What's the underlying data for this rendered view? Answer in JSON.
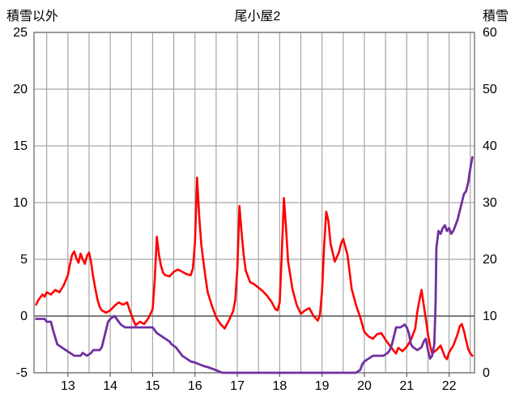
{
  "chart_data": {
    "type": "line",
    "title": "尾小屋2",
    "xlim": [
      12.2,
      22.6
    ],
    "x_ticks": [
      13,
      14,
      15,
      16,
      17,
      18,
      19,
      20,
      21,
      22
    ],
    "x_grid_step": 0.5,
    "grid": true,
    "legend": "none",
    "left_axis": {
      "label": "積雪以外",
      "lim": [
        -5,
        25
      ],
      "ticks": [
        -5,
        0,
        5,
        10,
        15,
        20,
        25
      ]
    },
    "right_axis": {
      "label": "積雪",
      "lim": [
        0,
        60
      ],
      "ticks": [
        0,
        10,
        20,
        30,
        40,
        50,
        60
      ]
    },
    "colors": {
      "grid": "#a6a6a6",
      "border": "#808080",
      "zero_line": "#595959",
      "tick_text": "#000000",
      "series_red": "#ff0000",
      "series_purple": "#7030a0"
    },
    "series": [
      {
        "name": "積雪以外",
        "axis": "left",
        "color": "#ff0000",
        "width": 2.6,
        "points": [
          [
            12.25,
            1.0
          ],
          [
            12.3,
            1.4
          ],
          [
            12.4,
            1.9
          ],
          [
            12.45,
            1.7
          ],
          [
            12.5,
            2.1
          ],
          [
            12.6,
            1.9
          ],
          [
            12.7,
            2.3
          ],
          [
            12.8,
            2.1
          ],
          [
            12.9,
            2.7
          ],
          [
            13.0,
            3.6
          ],
          [
            13.05,
            4.6
          ],
          [
            13.1,
            5.4
          ],
          [
            13.15,
            5.7
          ],
          [
            13.2,
            5.1
          ],
          [
            13.25,
            4.7
          ],
          [
            13.3,
            5.5
          ],
          [
            13.35,
            5.0
          ],
          [
            13.4,
            4.6
          ],
          [
            13.45,
            5.3
          ],
          [
            13.5,
            5.6
          ],
          [
            13.55,
            4.7
          ],
          [
            13.6,
            3.4
          ],
          [
            13.65,
            2.4
          ],
          [
            13.7,
            1.4
          ],
          [
            13.75,
            0.8
          ],
          [
            13.8,
            0.5
          ],
          [
            13.9,
            0.3
          ],
          [
            14.0,
            0.5
          ],
          [
            14.1,
            0.9
          ],
          [
            14.2,
            1.2
          ],
          [
            14.3,
            1.0
          ],
          [
            14.4,
            1.2
          ],
          [
            14.45,
            0.6
          ],
          [
            14.5,
            0.1
          ],
          [
            14.55,
            -0.4
          ],
          [
            14.6,
            -0.8
          ],
          [
            14.7,
            -0.5
          ],
          [
            14.8,
            -0.7
          ],
          [
            14.9,
            -0.2
          ],
          [
            15.0,
            0.6
          ],
          [
            15.05,
            3.2
          ],
          [
            15.1,
            7.0
          ],
          [
            15.15,
            5.4
          ],
          [
            15.2,
            4.4
          ],
          [
            15.25,
            3.8
          ],
          [
            15.3,
            3.6
          ],
          [
            15.4,
            3.5
          ],
          [
            15.5,
            3.9
          ],
          [
            15.6,
            4.1
          ],
          [
            15.7,
            3.9
          ],
          [
            15.8,
            3.7
          ],
          [
            15.9,
            3.6
          ],
          [
            15.95,
            4.2
          ],
          [
            16.0,
            6.5
          ],
          [
            16.05,
            12.2
          ],
          [
            16.1,
            8.8
          ],
          [
            16.15,
            6.3
          ],
          [
            16.2,
            4.8
          ],
          [
            16.25,
            3.4
          ],
          [
            16.3,
            2.1
          ],
          [
            16.4,
            0.9
          ],
          [
            16.5,
            -0.1
          ],
          [
            16.6,
            -0.7
          ],
          [
            16.7,
            -1.1
          ],
          [
            16.8,
            -0.4
          ],
          [
            16.9,
            0.4
          ],
          [
            16.95,
            1.4
          ],
          [
            17.0,
            4.2
          ],
          [
            17.05,
            9.7
          ],
          [
            17.1,
            7.4
          ],
          [
            17.15,
            5.4
          ],
          [
            17.2,
            4.0
          ],
          [
            17.3,
            3.0
          ],
          [
            17.4,
            2.8
          ],
          [
            17.5,
            2.5
          ],
          [
            17.6,
            2.2
          ],
          [
            17.7,
            1.8
          ],
          [
            17.8,
            1.3
          ],
          [
            17.9,
            0.6
          ],
          [
            17.95,
            0.5
          ],
          [
            18.0,
            1.2
          ],
          [
            18.05,
            5.5
          ],
          [
            18.1,
            10.4
          ],
          [
            18.15,
            7.8
          ],
          [
            18.2,
            4.8
          ],
          [
            18.3,
            2.4
          ],
          [
            18.4,
            1.0
          ],
          [
            18.5,
            0.2
          ],
          [
            18.6,
            0.5
          ],
          [
            18.7,
            0.7
          ],
          [
            18.8,
            0.0
          ],
          [
            18.9,
            -0.4
          ],
          [
            18.95,
            0.1
          ],
          [
            19.0,
            2.2
          ],
          [
            19.05,
            6.2
          ],
          [
            19.1,
            9.2
          ],
          [
            19.15,
            8.4
          ],
          [
            19.2,
            6.4
          ],
          [
            19.3,
            4.8
          ],
          [
            19.4,
            5.6
          ],
          [
            19.45,
            6.4
          ],
          [
            19.5,
            6.8
          ],
          [
            19.55,
            6.1
          ],
          [
            19.6,
            5.4
          ],
          [
            19.65,
            3.9
          ],
          [
            19.7,
            2.4
          ],
          [
            19.8,
            1.0
          ],
          [
            19.9,
            -0.1
          ],
          [
            20.0,
            -1.4
          ],
          [
            20.1,
            -1.8
          ],
          [
            20.2,
            -2.0
          ],
          [
            20.3,
            -1.6
          ],
          [
            20.4,
            -1.5
          ],
          [
            20.5,
            -2.1
          ],
          [
            20.6,
            -2.6
          ],
          [
            20.7,
            -3.1
          ],
          [
            20.75,
            -3.3
          ],
          [
            20.8,
            -2.8
          ],
          [
            20.9,
            -3.1
          ],
          [
            21.0,
            -2.7
          ],
          [
            21.1,
            -2.1
          ],
          [
            21.2,
            -1.1
          ],
          [
            21.25,
            0.4
          ],
          [
            21.3,
            1.4
          ],
          [
            21.35,
            2.3
          ],
          [
            21.4,
            1.0
          ],
          [
            21.45,
            -0.2
          ],
          [
            21.5,
            -1.6
          ],
          [
            21.55,
            -2.6
          ],
          [
            21.6,
            -3.3
          ],
          [
            21.7,
            -3.0
          ],
          [
            21.8,
            -2.6
          ],
          [
            21.85,
            -3.1
          ],
          [
            21.9,
            -3.6
          ],
          [
            21.95,
            -3.8
          ],
          [
            22.0,
            -3.2
          ],
          [
            22.1,
            -2.6
          ],
          [
            22.2,
            -1.6
          ],
          [
            22.25,
            -0.9
          ],
          [
            22.3,
            -0.7
          ],
          [
            22.35,
            -1.3
          ],
          [
            22.4,
            -2.1
          ],
          [
            22.45,
            -2.9
          ],
          [
            22.5,
            -3.3
          ],
          [
            22.55,
            -3.5
          ]
        ]
      },
      {
        "name": "積雪",
        "axis": "right",
        "color": "#7030a0",
        "width": 2.8,
        "points": [
          [
            12.25,
            9.5
          ],
          [
            12.45,
            9.5
          ],
          [
            12.5,
            9.0
          ],
          [
            12.6,
            9.0
          ],
          [
            12.65,
            7.5
          ],
          [
            12.75,
            5.0
          ],
          [
            12.85,
            4.5
          ],
          [
            12.95,
            4.0
          ],
          [
            13.05,
            3.5
          ],
          [
            13.15,
            3.0
          ],
          [
            13.3,
            3.0
          ],
          [
            13.35,
            3.5
          ],
          [
            13.45,
            3.0
          ],
          [
            13.55,
            3.5
          ],
          [
            13.6,
            4.0
          ],
          [
            13.75,
            4.0
          ],
          [
            13.8,
            4.5
          ],
          [
            13.85,
            6.0
          ],
          [
            13.95,
            9.0
          ],
          [
            14.0,
            9.5
          ],
          [
            14.1,
            10.0
          ],
          [
            14.15,
            9.5
          ],
          [
            14.25,
            8.5
          ],
          [
            14.35,
            8.0
          ],
          [
            14.6,
            8.0
          ],
          [
            14.75,
            8.0
          ],
          [
            15.0,
            8.0
          ],
          [
            15.05,
            7.5
          ],
          [
            15.1,
            7.0
          ],
          [
            15.2,
            6.5
          ],
          [
            15.3,
            6.0
          ],
          [
            15.4,
            5.5
          ],
          [
            15.45,
            5.0
          ],
          [
            15.55,
            4.5
          ],
          [
            15.6,
            4.0
          ],
          [
            15.7,
            3.0
          ],
          [
            15.8,
            2.5
          ],
          [
            15.9,
            2.0
          ],
          [
            16.0,
            1.8
          ],
          [
            16.1,
            1.5
          ],
          [
            16.2,
            1.2
          ],
          [
            16.3,
            1.0
          ],
          [
            16.45,
            0.6
          ],
          [
            16.55,
            0.3
          ],
          [
            16.65,
            0.0
          ],
          [
            17.0,
            0.0
          ],
          [
            18.0,
            0.0
          ],
          [
            19.0,
            0.0
          ],
          [
            19.8,
            0.0
          ],
          [
            19.9,
            0.5
          ],
          [
            19.95,
            1.5
          ],
          [
            20.0,
            2.0
          ],
          [
            20.1,
            2.5
          ],
          [
            20.2,
            3.0
          ],
          [
            20.45,
            3.0
          ],
          [
            20.55,
            3.5
          ],
          [
            20.6,
            4.0
          ],
          [
            20.65,
            5.0
          ],
          [
            20.7,
            6.5
          ],
          [
            20.75,
            8.0
          ],
          [
            20.85,
            8.0
          ],
          [
            20.95,
            8.5
          ],
          [
            21.0,
            8.0
          ],
          [
            21.05,
            7.0
          ],
          [
            21.1,
            5.0
          ],
          [
            21.15,
            4.5
          ],
          [
            21.25,
            4.0
          ],
          [
            21.35,
            4.5
          ],
          [
            21.4,
            5.5
          ],
          [
            21.45,
            6.0
          ],
          [
            21.5,
            4.0
          ],
          [
            21.55,
            2.5
          ],
          [
            21.6,
            3.0
          ],
          [
            21.65,
            5.0
          ],
          [
            21.68,
            12.0
          ],
          [
            21.7,
            22.0
          ],
          [
            21.75,
            25.0
          ],
          [
            21.8,
            24.5
          ],
          [
            21.85,
            25.5
          ],
          [
            21.9,
            26.0
          ],
          [
            21.95,
            25.0
          ],
          [
            22.0,
            25.5
          ],
          [
            22.05,
            24.5
          ],
          [
            22.1,
            25.0
          ],
          [
            22.15,
            26.0
          ],
          [
            22.2,
            27.0
          ],
          [
            22.25,
            28.5
          ],
          [
            22.3,
            30.0
          ],
          [
            22.35,
            31.5
          ],
          [
            22.4,
            32.0
          ],
          [
            22.45,
            33.5
          ],
          [
            22.5,
            36.0
          ],
          [
            22.55,
            38.0
          ]
        ]
      }
    ]
  }
}
